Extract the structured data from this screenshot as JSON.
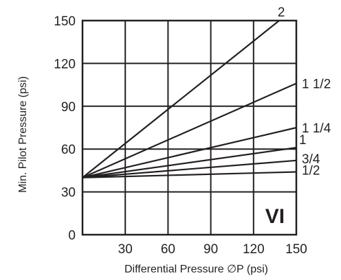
{
  "chart_data": {
    "type": "line",
    "title": "",
    "xlabel": "Differential Pressure ∅P (psi)",
    "ylabel": "Min. Pilot Pressure (psi)",
    "xlim": [
      0,
      150
    ],
    "ylim": [
      0,
      150
    ],
    "x_ticks": [
      30,
      60,
      90,
      120,
      150
    ],
    "y_ticks": [
      0,
      30,
      60,
      90,
      120,
      150
    ],
    "grid": true,
    "annotation": "VI",
    "series": [
      {
        "name": "2",
        "x": [
          0,
          138
        ],
        "y": [
          40,
          150
        ]
      },
      {
        "name": "1 1/2",
        "x": [
          0,
          150
        ],
        "y": [
          40,
          106
        ]
      },
      {
        "name": "1 1/4",
        "x": [
          0,
          150
        ],
        "y": [
          40,
          75
        ]
      },
      {
        "name": "1",
        "x": [
          0,
          150
        ],
        "y": [
          40,
          61
        ]
      },
      {
        "name": "3/4",
        "x": [
          0,
          150
        ],
        "y": [
          40,
          52
        ]
      },
      {
        "name": "1/2",
        "x": [
          0,
          150
        ],
        "y": [
          40,
          44
        ]
      }
    ]
  }
}
